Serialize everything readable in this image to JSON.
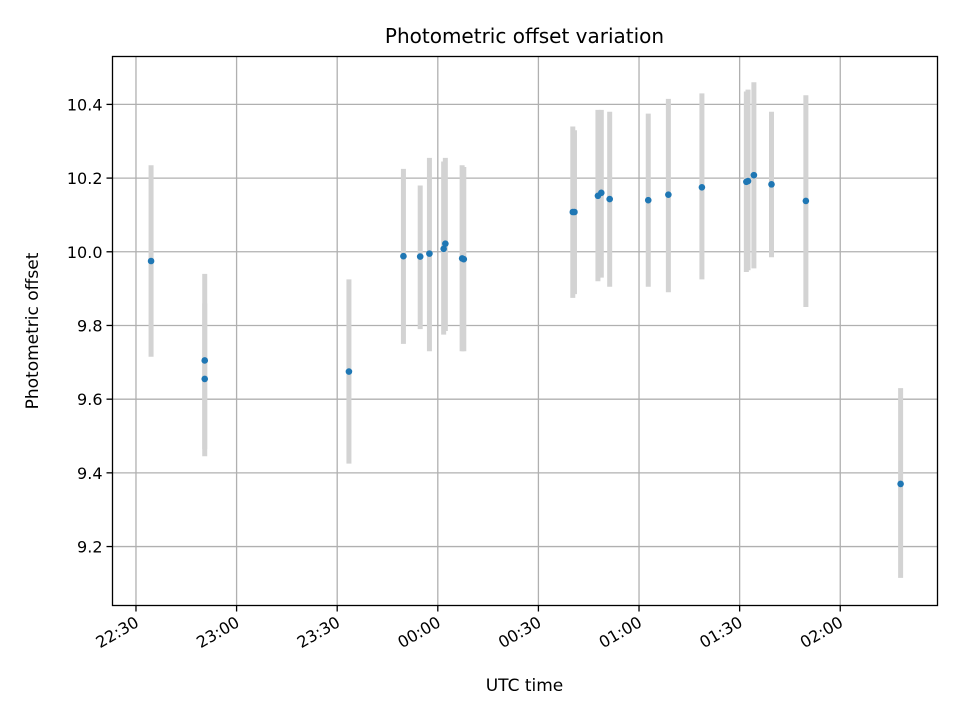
{
  "chart_data": {
    "type": "scatter",
    "title": "Photometric offset variation",
    "xlabel": "UTC time",
    "ylabel": "Photometric offset",
    "grid": true,
    "colors": {
      "points": "#1f77b4",
      "errorbars": "#d3d3d3",
      "grid": "#b0b0b0"
    },
    "xlim": [
      "22:23",
      "02:29"
    ],
    "ylim": [
      9.04,
      10.53
    ],
    "x_ticks": [
      "22:30",
      "23:00",
      "23:30",
      "00:00",
      "00:30",
      "01:00",
      "01:30",
      "02:00"
    ],
    "y_ticks": [
      "9.2",
      "9.4",
      "9.6",
      "9.8",
      "10.0",
      "10.2",
      "10.4"
    ],
    "points": [
      {
        "x": "22:34:30",
        "y": 9.975,
        "ylow": 9.715,
        "yhigh": 10.235
      },
      {
        "x": "22:50:30",
        "y": 9.705,
        "ylow": 9.465,
        "yhigh": 9.94
      },
      {
        "x": "22:50:30",
        "y": 9.655,
        "ylow": 9.445,
        "yhigh": 9.86
      },
      {
        "x": "23:33:30",
        "y": 9.675,
        "ylow": 9.425,
        "yhigh": 9.925
      },
      {
        "x": "23:49:45",
        "y": 9.988,
        "ylow": 9.75,
        "yhigh": 10.225
      },
      {
        "x": "23:54:45",
        "y": 9.987,
        "ylow": 9.79,
        "yhigh": 10.18
      },
      {
        "x": "23:57:30",
        "y": 9.995,
        "ylow": 9.73,
        "yhigh": 10.255
      },
      {
        "x": "00:01:45",
        "y": 10.008,
        "ylow": 9.775,
        "yhigh": 10.245
      },
      {
        "x": "00:02:15",
        "y": 10.022,
        "ylow": 9.785,
        "yhigh": 10.255
      },
      {
        "x": "00:07:15",
        "y": 9.982,
        "ylow": 9.73,
        "yhigh": 10.235
      },
      {
        "x": "00:07:45",
        "y": 9.98,
        "ylow": 9.73,
        "yhigh": 10.23
      },
      {
        "x": "00:40:15",
        "y": 10.108,
        "ylow": 9.875,
        "yhigh": 10.34
      },
      {
        "x": "00:40:45",
        "y": 10.108,
        "ylow": 9.885,
        "yhigh": 10.33
      },
      {
        "x": "00:47:45",
        "y": 10.152,
        "ylow": 9.92,
        "yhigh": 10.385
      },
      {
        "x": "00:48:45",
        "y": 10.16,
        "ylow": 9.93,
        "yhigh": 10.385
      },
      {
        "x": "00:51:15",
        "y": 10.143,
        "ylow": 9.905,
        "yhigh": 10.38
      },
      {
        "x": "01:02:45",
        "y": 10.14,
        "ylow": 9.905,
        "yhigh": 10.375
      },
      {
        "x": "01:08:45",
        "y": 10.155,
        "ylow": 9.89,
        "yhigh": 10.415
      },
      {
        "x": "01:18:45",
        "y": 10.175,
        "ylow": 9.925,
        "yhigh": 10.43
      },
      {
        "x": "01:32:00",
        "y": 10.19,
        "ylow": 9.945,
        "yhigh": 10.435
      },
      {
        "x": "01:32:30",
        "y": 10.192,
        "ylow": 9.95,
        "yhigh": 10.44
      },
      {
        "x": "01:34:15",
        "y": 10.208,
        "ylow": 9.955,
        "yhigh": 10.46
      },
      {
        "x": "01:39:30",
        "y": 10.183,
        "ylow": 9.985,
        "yhigh": 10.38
      },
      {
        "x": "01:49:45",
        "y": 10.138,
        "ylow": 9.85,
        "yhigh": 10.425
      },
      {
        "x": "02:18:00",
        "y": 9.37,
        "ylow": 9.115,
        "yhigh": 9.63
      }
    ]
  }
}
